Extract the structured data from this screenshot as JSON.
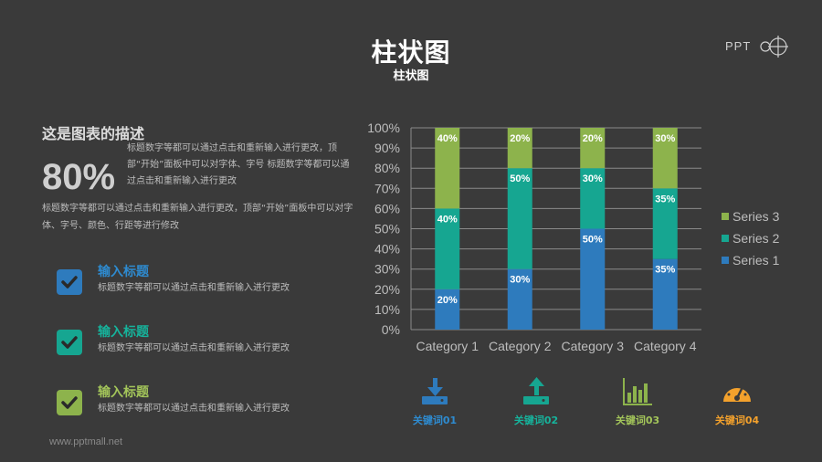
{
  "header": {
    "title": "柱状图",
    "subtitle": "柱状图",
    "logo_text": "PPT"
  },
  "description": {
    "title": "这是图表的描述",
    "big_value": "80%",
    "side_text": "标题数字等都可以通过点击和重新输入进行更改，顶部“开始”面板中可以对字体、字号 标题数字等都可以通过点击和重新输入进行更改",
    "bottom_text": "标题数字等都可以通过点击和重新输入进行更改，顶部“开始”面板中可以对字体、字号、颜色、行距等进行修改"
  },
  "features": [
    {
      "title": "输入标题",
      "text": "标题数字等都可以通过点击和重新输入进行更改",
      "color": "#2e7bbd"
    },
    {
      "title": "输入标题",
      "text": "标题数字等都可以通过点击和重新输入进行更改",
      "color": "#16a691"
    },
    {
      "title": "输入标题",
      "text": "标题数字等都可以通过点击和重新输入进行更改",
      "color": "#8db34c"
    }
  ],
  "keywords": [
    {
      "label": "关键词01",
      "icon": "download-icon",
      "color": "#2e7bbd"
    },
    {
      "label": "关键词02",
      "icon": "upload-icon",
      "color": "#16a691"
    },
    {
      "label": "关键词03",
      "icon": "bar-chart-icon",
      "color": "#8db34c"
    },
    {
      "label": "关键词04",
      "icon": "speedometer-icon",
      "color": "#f3a12c"
    }
  ],
  "footer": {
    "url": "www.pptmall.net"
  },
  "chart_data": {
    "type": "bar",
    "stacked": true,
    "categories": [
      "Category 1",
      "Category 2",
      "Category 3",
      "Category 4"
    ],
    "series": [
      {
        "name": "Series 1",
        "values": [
          20,
          30,
          50,
          35
        ],
        "labels": [
          "20%",
          "30%",
          "50%",
          "35%"
        ],
        "color": "#2e7bbd"
      },
      {
        "name": "Series 2",
        "values": [
          40,
          50,
          30,
          35
        ],
        "labels": [
          "40%",
          "50%",
          "30%",
          "35%"
        ],
        "color": "#16a691"
      },
      {
        "name": "Series 3",
        "values": [
          40,
          20,
          20,
          30
        ],
        "labels": [
          "40%",
          "20%",
          "20%",
          "30%"
        ],
        "color": "#8db34c"
      }
    ],
    "y_ticks": [
      "0%",
      "10%",
      "20%",
      "30%",
      "40%",
      "50%",
      "60%",
      "70%",
      "80%",
      "90%",
      "100%"
    ],
    "ylim": [
      0,
      100
    ],
    "grid": true,
    "legend": "right",
    "legend_order": [
      "Series 3",
      "Series 2",
      "Series 1"
    ]
  }
}
